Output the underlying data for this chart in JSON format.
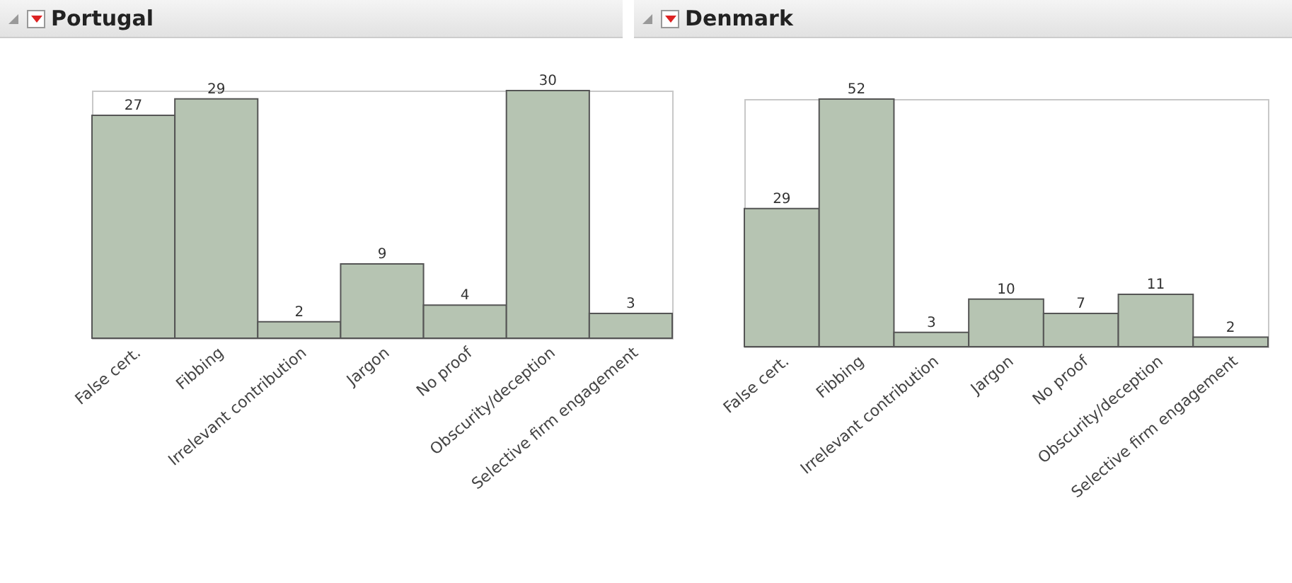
{
  "chart_data": [
    {
      "type": "bar",
      "title": "Portugal",
      "categories": [
        "False cert.",
        "Fibbing",
        "Irrelevant contribution",
        "Jargon",
        "No proof",
        "Obscurity/deception",
        "Selective firm engagement"
      ],
      "values": [
        27,
        29,
        2,
        9,
        4,
        30,
        3
      ],
      "color": "#b6c4b2",
      "data_labels": true
    },
    {
      "type": "bar",
      "title": "Denmark",
      "categories": [
        "False cert.",
        "Fibbing",
        "Irrelevant contribution",
        "Jargon",
        "No proof",
        "Obscurity/deception",
        "Selective firm engagement"
      ],
      "values": [
        29,
        52,
        3,
        10,
        7,
        11,
        2
      ],
      "color": "#b6c4b2",
      "data_labels": true
    }
  ]
}
